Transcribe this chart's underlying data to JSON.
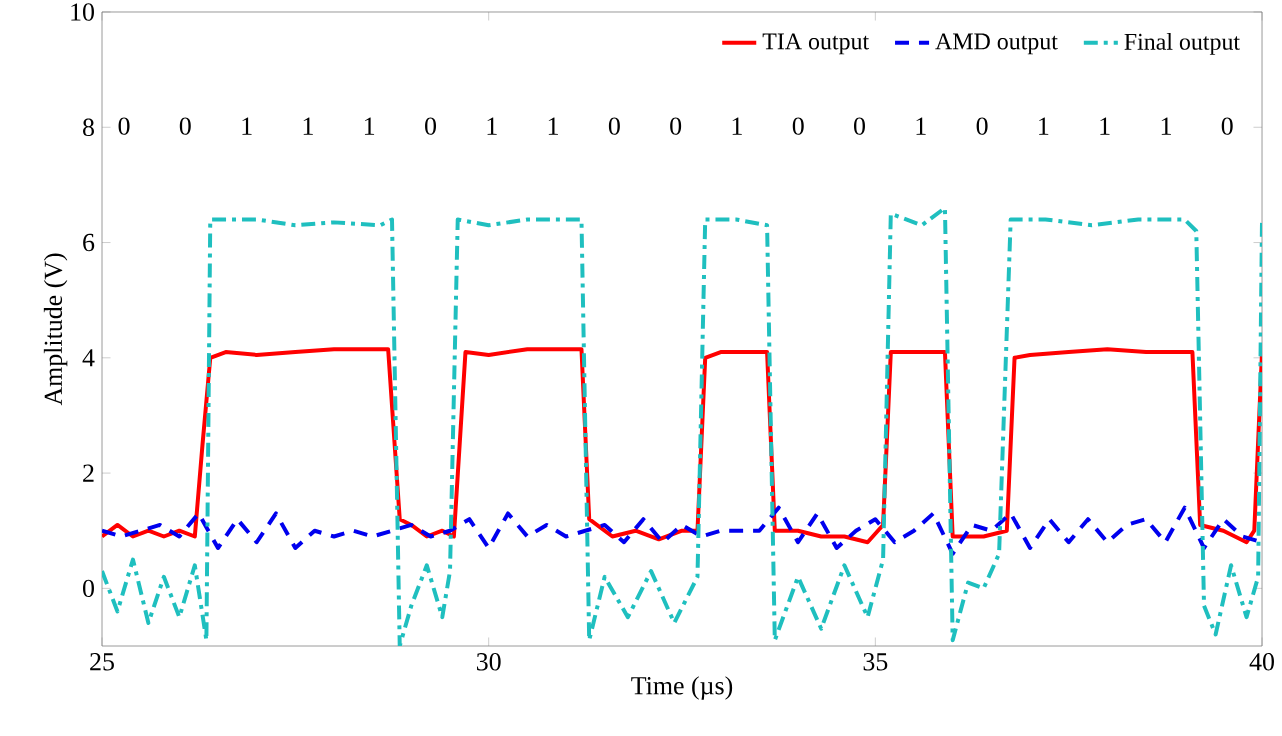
{
  "chart_data": {
    "type": "line",
    "xlabel": "Time (µs)",
    "ylabel": "Amplitude (V)",
    "xlim": [
      25,
      40
    ],
    "ylim": [
      -1,
      10
    ],
    "xticks": [
      25,
      30,
      35,
      40
    ],
    "yticks": [
      0,
      2,
      4,
      6,
      8,
      10
    ],
    "grid": false,
    "legend": "top right",
    "marker": "none",
    "series": [
      {
        "name": "TIA output",
        "color": "#ff0000",
        "line_style": "solid",
        "x": [
          25.0,
          25.2,
          25.4,
          25.6,
          25.8,
          26.0,
          26.2,
          26.3,
          26.4,
          26.6,
          27.0,
          27.5,
          28.0,
          28.7,
          28.85,
          29.0,
          29.2,
          29.4,
          29.55,
          29.7,
          30.0,
          30.5,
          31.2,
          31.3,
          31.6,
          31.9,
          32.2,
          32.5,
          32.7,
          32.8,
          33.0,
          33.6,
          33.7,
          34.0,
          34.3,
          34.6,
          34.9,
          35.1,
          35.2,
          35.5,
          35.9,
          36.0,
          36.4,
          36.7,
          36.8,
          37.0,
          37.5,
          38.0,
          38.5,
          39.1,
          39.2,
          39.5,
          39.8,
          39.9,
          40.0
        ],
        "values": [
          0.9,
          1.1,
          0.9,
          1.0,
          0.9,
          1.0,
          0.9,
          2.5,
          4.0,
          4.1,
          4.05,
          4.1,
          4.15,
          4.15,
          1.2,
          1.1,
          0.9,
          1.0,
          0.9,
          4.1,
          4.05,
          4.15,
          4.15,
          1.2,
          0.9,
          1.0,
          0.85,
          1.0,
          1.0,
          4.0,
          4.1,
          4.1,
          1.0,
          1.0,
          0.9,
          0.9,
          0.8,
          1.1,
          4.1,
          4.1,
          4.1,
          0.9,
          0.9,
          1.0,
          4.0,
          4.05,
          4.1,
          4.15,
          4.1,
          4.1,
          1.1,
          1.0,
          0.8,
          1.0,
          4.1
        ]
      },
      {
        "name": "AMD output",
        "color": "#0000ee",
        "line_style": "dashed",
        "x": [
          25.0,
          25.25,
          25.5,
          25.75,
          26.0,
          26.25,
          26.5,
          26.75,
          27.0,
          27.25,
          27.5,
          27.75,
          28.0,
          28.25,
          28.5,
          28.75,
          29.0,
          29.25,
          29.5,
          29.75,
          30.0,
          30.25,
          30.5,
          30.75,
          31.0,
          31.25,
          31.5,
          31.75,
          32.0,
          32.25,
          32.5,
          32.75,
          33.0,
          33.25,
          33.5,
          33.75,
          34.0,
          34.25,
          34.5,
          34.75,
          35.0,
          35.25,
          35.5,
          35.75,
          36.0,
          36.25,
          36.5,
          36.75,
          37.0,
          37.25,
          37.5,
          37.75,
          38.0,
          38.25,
          38.5,
          38.75,
          39.0,
          39.25,
          39.5,
          39.75,
          40.0
        ],
        "values": [
          1.0,
          0.9,
          1.0,
          1.1,
          0.9,
          1.3,
          0.7,
          1.2,
          0.8,
          1.3,
          0.7,
          1.0,
          0.9,
          1.0,
          0.9,
          1.0,
          1.1,
          0.9,
          1.0,
          1.2,
          0.7,
          1.3,
          0.9,
          1.1,
          0.9,
          1.0,
          1.1,
          0.8,
          1.2,
          0.8,
          1.1,
          0.9,
          1.0,
          1.0,
          1.0,
          1.4,
          0.8,
          1.3,
          0.7,
          1.0,
          1.2,
          0.8,
          1.0,
          1.3,
          0.6,
          1.1,
          1.0,
          1.3,
          0.7,
          1.2,
          0.8,
          1.2,
          0.8,
          1.1,
          1.2,
          0.8,
          1.4,
          0.7,
          1.2,
          0.9,
          0.8
        ]
      },
      {
        "name": "Final output",
        "color": "#1fbfbf",
        "line_style": "dashdot",
        "x": [
          25.0,
          25.2,
          25.4,
          25.6,
          25.8,
          26.0,
          26.2,
          26.35,
          26.4,
          27.0,
          27.5,
          28.0,
          28.6,
          28.75,
          28.85,
          29.0,
          29.2,
          29.4,
          29.5,
          29.6,
          30.0,
          30.5,
          31.2,
          31.3,
          31.5,
          31.8,
          32.1,
          32.4,
          32.7,
          32.8,
          33.2,
          33.6,
          33.7,
          34.0,
          34.3,
          34.6,
          34.9,
          35.1,
          35.2,
          35.6,
          35.9,
          36.0,
          36.2,
          36.4,
          36.6,
          36.75,
          37.2,
          37.8,
          38.4,
          39.0,
          39.15,
          39.25,
          39.4,
          39.6,
          39.8,
          39.95,
          40.0
        ],
        "values": [
          0.3,
          -0.4,
          0.5,
          -0.6,
          0.2,
          -0.5,
          0.4,
          -0.9,
          6.4,
          6.4,
          6.3,
          6.35,
          6.3,
          6.4,
          -1.0,
          -0.3,
          0.4,
          -0.5,
          0.3,
          6.4,
          6.3,
          6.4,
          6.4,
          -0.9,
          0.2,
          -0.5,
          0.3,
          -0.6,
          0.2,
          6.4,
          6.4,
          6.3,
          -0.9,
          0.2,
          -0.7,
          0.4,
          -0.5,
          0.5,
          6.5,
          6.3,
          6.6,
          -0.9,
          0.1,
          0.0,
          0.6,
          6.4,
          6.4,
          6.3,
          6.4,
          6.4,
          6.2,
          -0.3,
          -0.8,
          0.4,
          -0.5,
          0.2,
          6.4
        ]
      }
    ],
    "annotations": [
      "0",
      "0",
      "1",
      "1",
      "1",
      "0",
      "1",
      "1",
      "0",
      "0",
      "1",
      "0",
      "0",
      "1",
      "0",
      "1",
      "1",
      "1",
      "0"
    ]
  }
}
